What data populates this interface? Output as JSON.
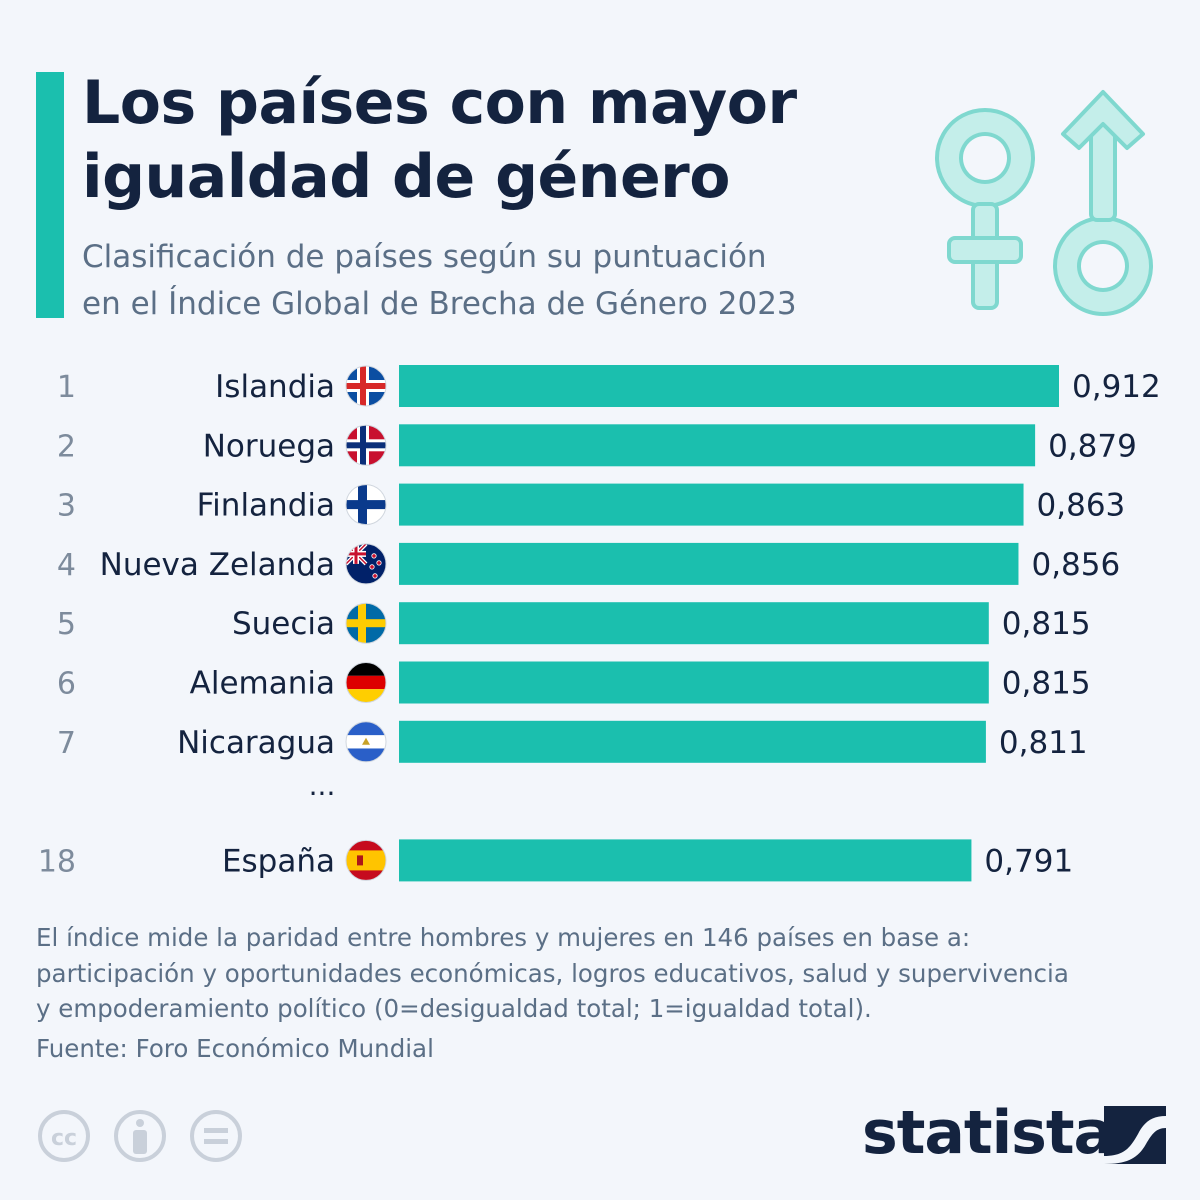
{
  "header": {
    "title_line1": "Los países con mayor",
    "title_line2": "igualdad de género",
    "subtitle_line1": "Clasificación de países según su puntuación",
    "subtitle_line2": "en el Índice Global de Brecha de Género 2023"
  },
  "icons": {
    "header": "gender-symbols-icon",
    "flag_style": "circle-flag-icon",
    "license": [
      "cc-icon",
      "attribution-icon",
      "no-derivatives-icon"
    ],
    "brand": "statista-logo-icon"
  },
  "colors": {
    "accent": "#1bbfae",
    "bar": "#1bbfae",
    "icon_fill": "#c4eeea",
    "icon_stroke": "#7fd8cf",
    "title": "#14233f",
    "muted": "#5b6f86",
    "background": "#f3f6fb"
  },
  "chart_data": {
    "type": "bar",
    "orientation": "horizontal",
    "xlim": [
      0,
      0.912
    ],
    "grid": false,
    "legend": "none",
    "rows": [
      {
        "rank": "1",
        "country": "Islandia",
        "flag": "iceland",
        "value": 0.912,
        "label": "0,912"
      },
      {
        "rank": "2",
        "country": "Noruega",
        "flag": "norway",
        "value": 0.879,
        "label": "0,879"
      },
      {
        "rank": "3",
        "country": "Finlandia",
        "flag": "finland",
        "value": 0.863,
        "label": "0,863"
      },
      {
        "rank": "4",
        "country": "Nueva Zelanda",
        "flag": "new-zealand",
        "value": 0.856,
        "label": "0,856"
      },
      {
        "rank": "5",
        "country": "Suecia",
        "flag": "sweden",
        "value": 0.815,
        "label": "0,815"
      },
      {
        "rank": "6",
        "country": "Alemania",
        "flag": "germany",
        "value": 0.815,
        "label": "0,815"
      },
      {
        "rank": "7",
        "country": "Nicaragua",
        "flag": "nicaragua",
        "value": 0.811,
        "label": "0,811"
      },
      {
        "ellipsis": "..."
      },
      {
        "rank": "18",
        "country": "España",
        "flag": "spain",
        "value": 0.791,
        "label": "0,791"
      }
    ]
  },
  "footer": {
    "note_line1": "El índice mide la paridad entre hombres y mujeres en 146 países en base a:",
    "note_line2": "participación y oportunidades económicas, logros educativos, salud y supervivencia",
    "note_line3": "y empoderamiento político (0=desigualdad total; 1=igualdad total).",
    "source": "Fuente: Foro Económico Mundial",
    "brand": "statista"
  }
}
